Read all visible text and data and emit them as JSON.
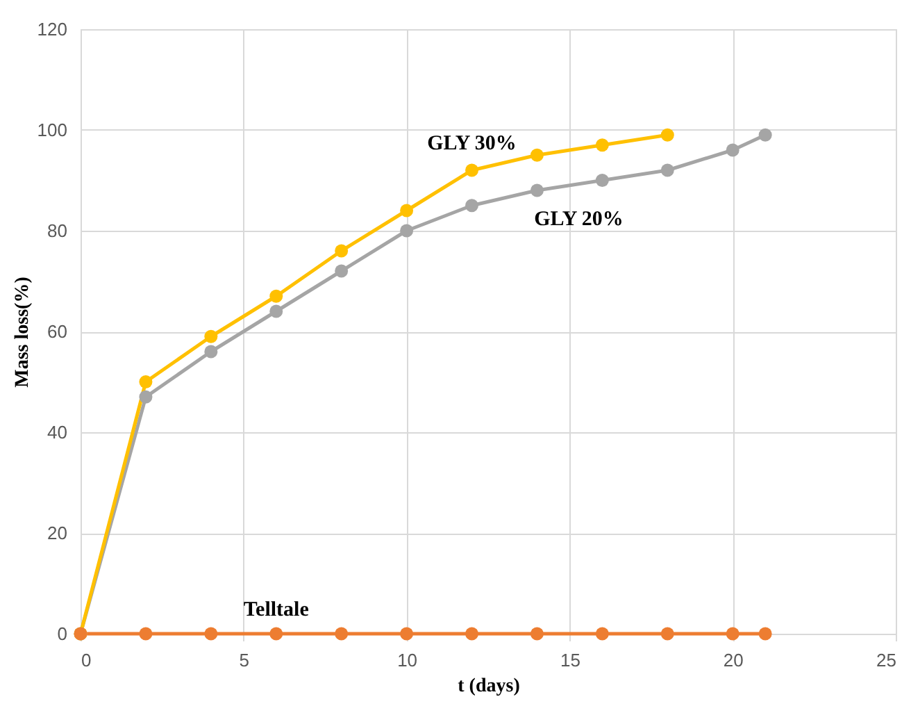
{
  "chart_data": {
    "type": "line",
    "xlabel": "t (days)",
    "ylabel": "Mass loss(%)",
    "xlim": [
      0,
      25
    ],
    "xticks": [
      0,
      5,
      10,
      15,
      20,
      25
    ],
    "ylim": [
      0,
      120
    ],
    "yticks": [
      0,
      20,
      40,
      60,
      80,
      100,
      120
    ],
    "grid": true,
    "legend": false,
    "marker": "circle",
    "line_style": "solid",
    "series": [
      {
        "name": "GLY 20%",
        "color": "#a5a5a5",
        "x": [
          0,
          2,
          4,
          6,
          8,
          10,
          12,
          14,
          16,
          18,
          20,
          21
        ],
        "values": [
          0,
          47,
          56,
          64,
          72,
          80,
          85,
          88,
          90,
          92,
          96,
          99
        ]
      },
      {
        "name": "GLY 30%",
        "color": "#ffc000",
        "x": [
          0,
          2,
          4,
          6,
          8,
          10,
          12,
          14,
          16,
          18
        ],
        "values": [
          0,
          50,
          59,
          67,
          76,
          84,
          92,
          95,
          97,
          99
        ]
      },
      {
        "name": "Telltale",
        "color": "#ed7d31",
        "x": [
          0,
          2,
          4,
          6,
          8,
          10,
          12,
          14,
          16,
          18,
          20,
          21
        ],
        "values": [
          0,
          0,
          0,
          0,
          0,
          0,
          0,
          0,
          0,
          0,
          0,
          0
        ]
      }
    ]
  }
}
